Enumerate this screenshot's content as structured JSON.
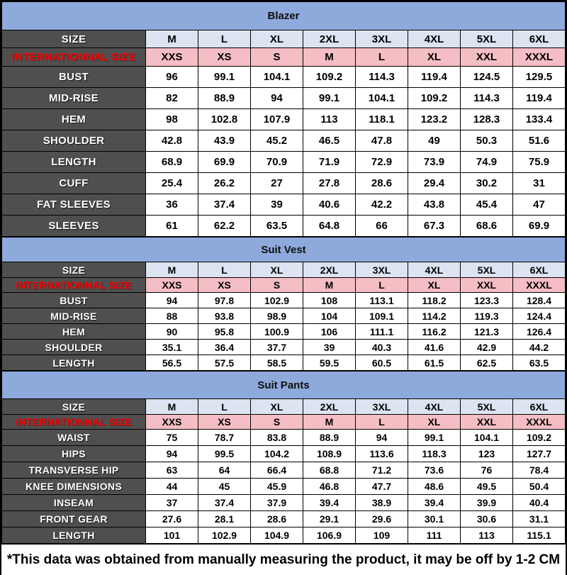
{
  "page": {
    "footnote": "*This data was obtained from manually measuring the product, it may be off by 1-2 CM"
  },
  "colors": {
    "title_band_blue": "#8EA9DB",
    "size_row_blue": "#DCE4F2",
    "international_row_pink": "#F5BEC4",
    "international_text_red": "#FF0000",
    "label_column_gray": "#4F4F4F",
    "cell_border_black": "#000000",
    "data_cell_white": "#FFFFFF"
  },
  "chart_data": [
    {
      "type": "table",
      "title": "Blazer",
      "size_row": {
        "label": "SIZE",
        "values": [
          "M",
          "L",
          "XL",
          "2XL",
          "3XL",
          "4XL",
          "5XL",
          "6XL"
        ]
      },
      "intl_row": {
        "label": "INTERNATIONNAL SIZE",
        "values": [
          "XXS",
          "XS",
          "S",
          "M",
          "L",
          "XL",
          "XXL",
          "XXXL"
        ]
      },
      "rows": [
        {
          "label": "BUST",
          "values": [
            "96",
            "99.1",
            "104.1",
            "109.2",
            "114.3",
            "119.4",
            "124.5",
            "129.5"
          ]
        },
        {
          "label": "MID-RISE",
          "values": [
            "82",
            "88.9",
            "94",
            "99.1",
            "104.1",
            "109.2",
            "114.3",
            "119.4"
          ]
        },
        {
          "label": "HEM",
          "values": [
            "98",
            "102.8",
            "107.9",
            "113",
            "118.1",
            "123.2",
            "128.3",
            "133.4"
          ]
        },
        {
          "label": "SHOULDER",
          "values": [
            "42.8",
            "43.9",
            "45.2",
            "46.5",
            "47.8",
            "49",
            "50.3",
            "51.6"
          ]
        },
        {
          "label": "LENGTH",
          "values": [
            "68.9",
            "69.9",
            "70.9",
            "71.9",
            "72.9",
            "73.9",
            "74.9",
            "75.9"
          ]
        },
        {
          "label": "CUFF",
          "values": [
            "25.4",
            "26.2",
            "27",
            "27.8",
            "28.6",
            "29.4",
            "30.2",
            "31"
          ]
        },
        {
          "label": "FAT SLEEVES",
          "values": [
            "36",
            "37.4",
            "39",
            "40.6",
            "42.2",
            "43.8",
            "45.4",
            "47"
          ]
        },
        {
          "label": "SLEEVES",
          "values": [
            "61",
            "62.2",
            "63.5",
            "64.8",
            "66",
            "67.3",
            "68.6",
            "69.9"
          ]
        }
      ]
    },
    {
      "type": "table",
      "title": "Suit Vest",
      "size_row": {
        "label": "SIZE",
        "values": [
          "M",
          "L",
          "XL",
          "2XL",
          "3XL",
          "4XL",
          "5XL",
          "6XL"
        ]
      },
      "intl_row": {
        "label": "INTERNATIONNAL SIZE",
        "values": [
          "XXS",
          "XS",
          "S",
          "M",
          "L",
          "XL",
          "XXL",
          "XXXL"
        ]
      },
      "rows": [
        {
          "label": "BUST",
          "values": [
            "94",
            "97.8",
            "102.9",
            "108",
            "113.1",
            "118.2",
            "123.3",
            "128.4"
          ]
        },
        {
          "label": "MID-RISE",
          "values": [
            "88",
            "93.8",
            "98.9",
            "104",
            "109.1",
            "114.2",
            "119.3",
            "124.4"
          ]
        },
        {
          "label": "HEM",
          "values": [
            "90",
            "95.8",
            "100.9",
            "106",
            "111.1",
            "116.2",
            "121.3",
            "126.4"
          ]
        },
        {
          "label": "SHOULDER",
          "values": [
            "35.1",
            "36.4",
            "37.7",
            "39",
            "40.3",
            "41.6",
            "42.9",
            "44.2"
          ]
        },
        {
          "label": "LENGTH",
          "values": [
            "56.5",
            "57.5",
            "58.5",
            "59.5",
            "60.5",
            "61.5",
            "62.5",
            "63.5"
          ]
        }
      ]
    },
    {
      "type": "table",
      "title": "Suit Pants",
      "size_row": {
        "label": "SIZE",
        "values": [
          "M",
          "L",
          "XL",
          "2XL",
          "3XL",
          "4XL",
          "5XL",
          "6XL"
        ]
      },
      "intl_row": {
        "label": "INTERNATIONNAL SIZE",
        "values": [
          "XXS",
          "XS",
          "S",
          "M",
          "L",
          "XL",
          "XXL",
          "XXXL"
        ]
      },
      "rows": [
        {
          "label": "WAIST",
          "values": [
            "75",
            "78.7",
            "83.8",
            "88.9",
            "94",
            "99.1",
            "104.1",
            "109.2"
          ]
        },
        {
          "label": "HIPS",
          "values": [
            "94",
            "99.5",
            "104.2",
            "108.9",
            "113.6",
            "118.3",
            "123",
            "127.7"
          ]
        },
        {
          "label": "TRANSVERSE HIP",
          "values": [
            "63",
            "64",
            "66.4",
            "68.8",
            "71.2",
            "73.6",
            "76",
            "78.4"
          ]
        },
        {
          "label": "KNEE DIMENSIONS",
          "values": [
            "44",
            "45",
            "45.9",
            "46.8",
            "47.7",
            "48.6",
            "49.5",
            "50.4"
          ]
        },
        {
          "label": "INSEAM",
          "values": [
            "37",
            "37.4",
            "37.9",
            "39.4",
            "38.9",
            "39.4",
            "39.9",
            "40.4"
          ]
        },
        {
          "label": "FRONT GEAR",
          "values": [
            "27.6",
            "28.1",
            "28.6",
            "29.1",
            "29.6",
            "30.1",
            "30.6",
            "31.1"
          ]
        },
        {
          "label": "LENGTH",
          "values": [
            "101",
            "102.9",
            "104.9",
            "106.9",
            "109",
            "111",
            "113",
            "115.1"
          ]
        }
      ]
    }
  ]
}
